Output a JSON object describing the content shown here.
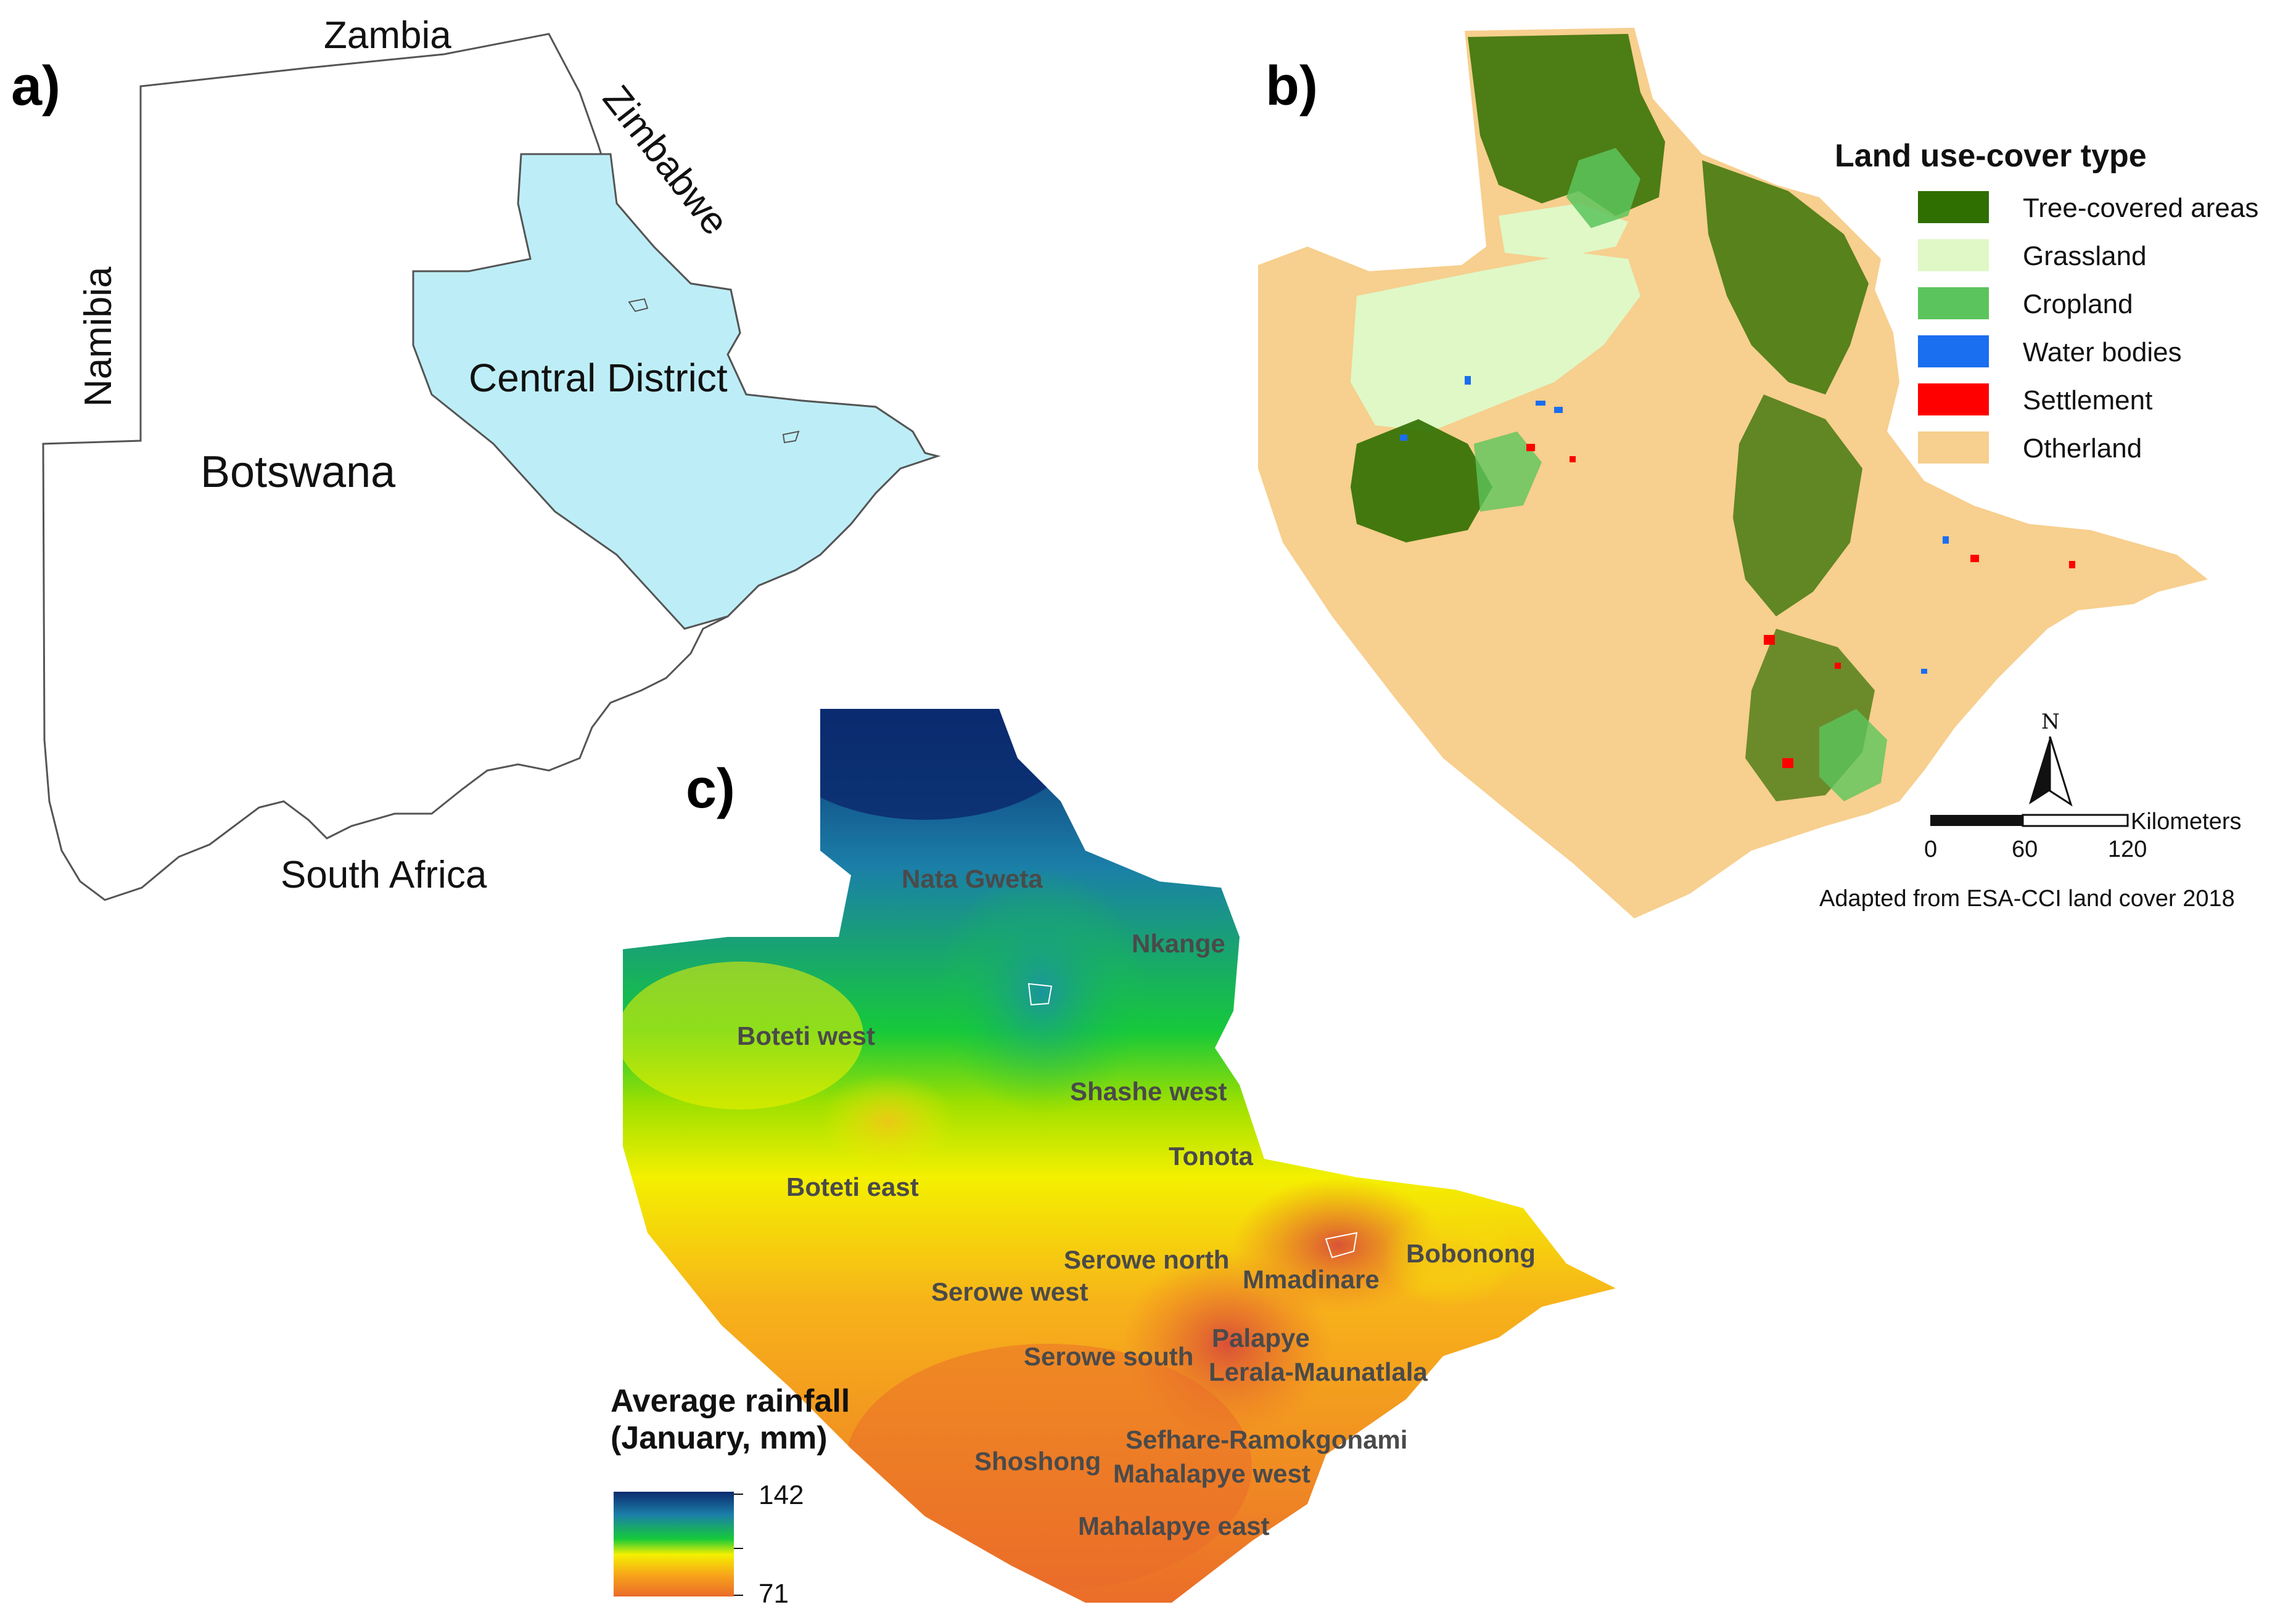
{
  "panels": {
    "a": {
      "label": "a)",
      "countries": {
        "zambia": "Zambia",
        "zimbabwe": "Zimbabwe",
        "namibia": "Namibia",
        "south_africa": "South Africa",
        "botswana": "Botswana"
      },
      "district_label": "Central District",
      "colors": {
        "district_fill": "#bdeef7",
        "outline": "#555555"
      }
    },
    "b": {
      "label": "b)",
      "legend_title": "Land use-cover type",
      "legend": [
        {
          "label": "Tree-covered areas",
          "color": "#2f6e00"
        },
        {
          "label": "Grassland",
          "color": "#dff8c6"
        },
        {
          "label": "Cropland",
          "color": "#5cc45c"
        },
        {
          "label": "Water bodies",
          "color": "#1a6ef0"
        },
        {
          "label": "Settlement",
          "color": "#ff0000"
        },
        {
          "label": "Otherland",
          "color": "#f7cf8e"
        }
      ],
      "north_label": "N",
      "scale": {
        "unit": "Kilometers",
        "ticks": [
          "0",
          "60",
          "120"
        ]
      },
      "credit": "Adapted from ESA-CCI land cover 2018"
    },
    "c": {
      "label": "c)",
      "legend_title_line1": "Average rainfall",
      "legend_title_line2": "(January, mm)",
      "ramp": {
        "max_label": "142",
        "min_label": "71",
        "colors": [
          "#0b2a6e",
          "#1b7fa8",
          "#16c93a",
          "#f4f000",
          "#f7a31a",
          "#ea6a2a"
        ]
      },
      "places": [
        "Nata Gweta",
        "Nkange",
        "Boteti west",
        "Shashe west",
        "Tonota",
        "Boteti east",
        "Serowe north",
        "Bobonong",
        "Mmadinare",
        "Serowe west",
        "Palapye",
        "Serowe south",
        "Lerala-Maunatlala",
        "Sefhare-Ramokgonami",
        "Shoshong",
        "Mahalapye west",
        "Mahalapye east"
      ]
    }
  }
}
